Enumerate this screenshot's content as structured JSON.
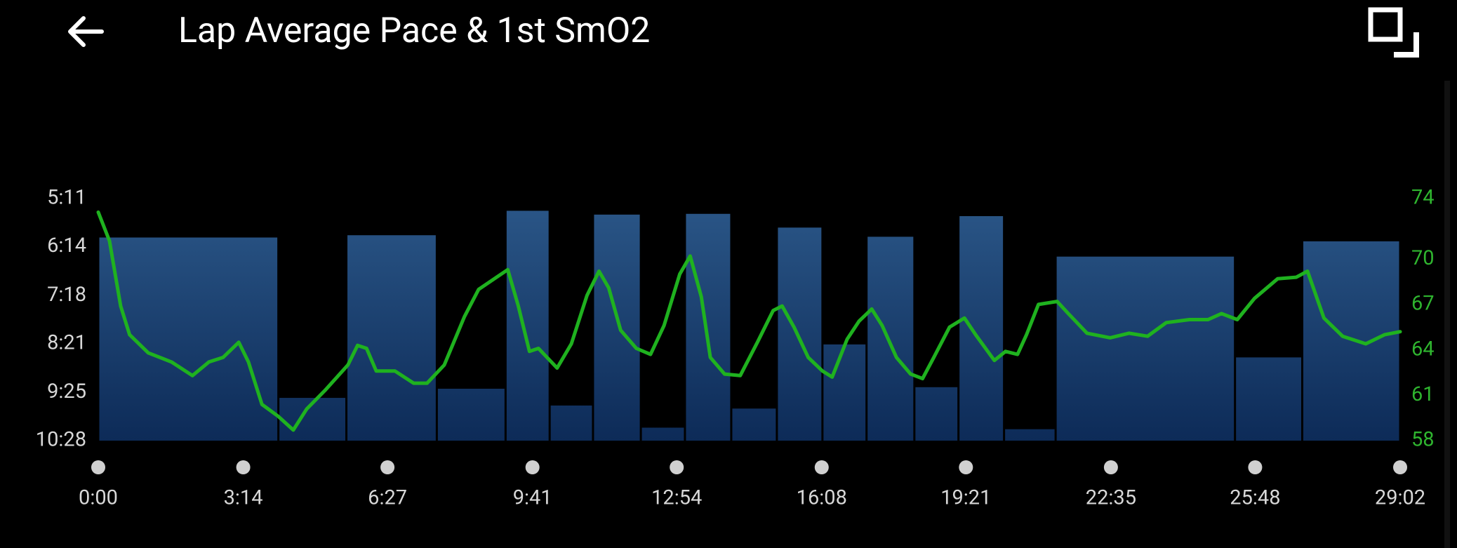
{
  "chart_data": {
    "type": "bar",
    "title": "Lap Average Pace & 1st SmO2",
    "xlim": [
      0,
      1742
    ],
    "xticks": [
      {
        "value": 0,
        "label": "0:00"
      },
      {
        "value": 194,
        "label": "3:14"
      },
      {
        "value": 387,
        "label": "6:27"
      },
      {
        "value": 581,
        "label": "9:41"
      },
      {
        "value": 774,
        "label": "12:54"
      },
      {
        "value": 968,
        "label": "16:08"
      },
      {
        "value": 1161,
        "label": "19:21"
      },
      {
        "value": 1355,
        "label": "22:35"
      },
      {
        "value": 1548,
        "label": "25:48"
      },
      {
        "value": 1742,
        "label": "29:02"
      }
    ],
    "ylim": [
      628,
      311
    ],
    "yticks": [
      {
        "value": 311,
        "label": "5:11"
      },
      {
        "value": 374,
        "label": "6:14"
      },
      {
        "value": 438,
        "label": "7:18"
      },
      {
        "value": 501,
        "label": "8:21"
      },
      {
        "value": 565,
        "label": "9:25"
      },
      {
        "value": 628,
        "label": "10:28"
      }
    ],
    "y2lim": [
      58,
      74
    ],
    "y2ticks": [
      58,
      61,
      64,
      67,
      70,
      74
    ],
    "y2color": "#2fb52f",
    "series": [
      {
        "type": "bar",
        "color": "#1d4676",
        "bins": [
          0,
          241,
          332,
          453,
          545,
          604,
          662,
          726,
          785,
          847,
          908,
          969,
          1028,
          1092,
          1151,
          1212,
          1281,
          1521,
          1611,
          1742
        ],
        "values": [
          362,
          572,
          359,
          560,
          327,
          582,
          332,
          611,
          331,
          586,
          349,
          502,
          361,
          558,
          334,
          613,
          387,
          519,
          367
        ]
      },
      {
        "type": "line",
        "axis": "y2",
        "color": "#1fb21f",
        "x": [
          0,
          15,
          30,
          42,
          67,
          98,
          126,
          148,
          167,
          188,
          201,
          219,
          241,
          261,
          279,
          303,
          334,
          347,
          359,
          372,
          397,
          422,
          440,
          463,
          490,
          509,
          533,
          548,
          562,
          577,
          589,
          614,
          633,
          654,
          670,
          683,
          699,
          720,
          739,
          757,
          778,
          792,
          807,
          819,
          838,
          859,
          882,
          903,
          915,
          931,
          950,
          969,
          982,
          1002,
          1018,
          1035,
          1049,
          1068,
          1087,
          1103,
          1118,
          1139,
          1159,
          1174,
          1199,
          1214,
          1230,
          1242,
          1258,
          1283,
          1298,
          1323,
          1354,
          1379,
          1404,
          1429,
          1460,
          1485,
          1503,
          1524,
          1547,
          1578,
          1603,
          1618,
          1640,
          1665,
          1696,
          1721,
          1742
        ],
        "values": [
          73.1,
          71.2,
          66.9,
          65.0,
          63.8,
          63.2,
          62.3,
          63.2,
          63.5,
          64.5,
          63.2,
          60.4,
          59.6,
          58.7,
          60.1,
          61.3,
          63.0,
          64.3,
          64.1,
          62.6,
          62.6,
          61.8,
          61.8,
          63.0,
          66.2,
          68.0,
          68.8,
          69.3,
          66.9,
          63.9,
          64.1,
          62.8,
          64.4,
          67.6,
          69.2,
          68.1,
          65.3,
          64.1,
          63.7,
          65.6,
          69.0,
          70.2,
          67.5,
          63.5,
          62.4,
          62.3,
          64.5,
          66.6,
          66.9,
          65.5,
          63.5,
          62.6,
          62.2,
          64.7,
          65.9,
          66.7,
          65.6,
          63.5,
          62.4,
          62.1,
          63.5,
          65.5,
          66.1,
          65.0,
          63.3,
          63.9,
          63.7,
          65.0,
          67.0,
          67.2,
          66.4,
          65.1,
          64.8,
          65.1,
          64.9,
          65.8,
          66.0,
          66.0,
          66.4,
          66.0,
          67.4,
          68.7,
          68.8,
          69.2,
          66.1,
          64.9,
          64.4,
          65.0,
          65.2
        ]
      }
    ]
  }
}
